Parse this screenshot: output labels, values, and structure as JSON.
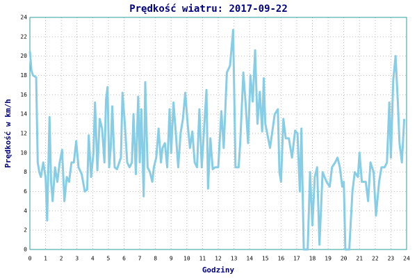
{
  "chart_data": {
    "type": "line",
    "title": "Prędkość wiatru: 2017-09-22",
    "x_label": "Godziny",
    "y_label": "Prędkość w km/h",
    "x": [
      0,
      0.1,
      0.2,
      0.4,
      0.5,
      0.6,
      0.7,
      0.85,
      1.0,
      1.1,
      1.25,
      1.35,
      1.45,
      1.6,
      1.75,
      1.9,
      2.05,
      2.2,
      2.35,
      2.5,
      2.65,
      2.8,
      2.95,
      3.1,
      3.3,
      3.5,
      3.65,
      3.75,
      3.9,
      4.05,
      4.15,
      4.3,
      4.45,
      4.6,
      4.75,
      4.85,
      4.95,
      5.05,
      5.15,
      5.25,
      5.4,
      5.55,
      5.8,
      5.9,
      6.05,
      6.2,
      6.35,
      6.5,
      6.6,
      6.75,
      6.9,
      7.0,
      7.1,
      7.25,
      7.35,
      7.5,
      7.65,
      7.8,
      7.9,
      8.05,
      8.2,
      8.35,
      8.45,
      8.6,
      8.75,
      8.9,
      9.0,
      9.15,
      9.3,
      9.45,
      9.6,
      9.75,
      9.9,
      10.05,
      10.2,
      10.35,
      10.5,
      10.65,
      10.8,
      10.95,
      11.1,
      11.25,
      11.35,
      11.5,
      11.65,
      11.8,
      12.0,
      12.2,
      12.35,
      12.55,
      12.75,
      12.95,
      13.1,
      13.3,
      13.4,
      13.6,
      13.75,
      13.9,
      14.05,
      14.2,
      14.35,
      14.5,
      14.65,
      14.8,
      14.9,
      15.0,
      15.3,
      15.6,
      15.8,
      15.9,
      16.0,
      16.15,
      16.3,
      16.5,
      16.7,
      16.9,
      17.05,
      17.2,
      17.3,
      17.45,
      17.7,
      17.85,
      18.0,
      18.15,
      18.3,
      18.45,
      18.65,
      18.9,
      19.1,
      19.25,
      19.45,
      19.6,
      19.75,
      19.9,
      20.0,
      20.1,
      20.35,
      20.55,
      20.7,
      20.9,
      21.0,
      21.15,
      21.4,
      21.55,
      21.7,
      21.9,
      22.05,
      22.25,
      22.4,
      22.6,
      22.75,
      22.9,
      23.0,
      23.15,
      23.3,
      23.45,
      23.55,
      23.7,
      23.85
    ],
    "series": [
      {
        "name": "Prędkość",
        "color": "#87cde6",
        "values": [
          20.5,
          18.5,
          18,
          17.8,
          9,
          8,
          7.5,
          9,
          7.5,
          3,
          13.7,
          7,
          5,
          8.5,
          7,
          9,
          10.3,
          5,
          7.5,
          7,
          9,
          9,
          11.2,
          8.5,
          7.8,
          6,
          6.2,
          11.8,
          7.5,
          10,
          15.2,
          8.2,
          13.5,
          12.5,
          9,
          15.5,
          16.8,
          8.5,
          10.5,
          14.8,
          8.5,
          8.3,
          9.5,
          16.2,
          13,
          9,
          8.5,
          9,
          14,
          7.8,
          15.8,
          9,
          14.5,
          5.5,
          17.3,
          8.5,
          8,
          7,
          8.5,
          9.5,
          12.5,
          9,
          10.5,
          11,
          8.5,
          14.5,
          10,
          15.2,
          12,
          8.5,
          12,
          13.5,
          16.2,
          13,
          10.5,
          12.2,
          9,
          8.5,
          14.5,
          8.5,
          12.5,
          16.5,
          6.3,
          11.5,
          8.3,
          8.5,
          8.5,
          14.3,
          10.5,
          18.3,
          19,
          22.7,
          8.5,
          8.5,
          11,
          18.3,
          15,
          11,
          18,
          15.3,
          20.6,
          13,
          16.3,
          12.2,
          17.7,
          13,
          10.5,
          14,
          14.5,
          8,
          7,
          13.5,
          11.5,
          11.5,
          9.5,
          12.3,
          12,
          6,
          12.5,
          0,
          0,
          8,
          2.5,
          7.5,
          8.5,
          0.5,
          8,
          7,
          6.5,
          8.5,
          9,
          9.5,
          8.5,
          6.5,
          7,
          0,
          0,
          6,
          8,
          7.5,
          10,
          7,
          7,
          5,
          9,
          8,
          3.5,
          7,
          8.5,
          8.5,
          9,
          15.2,
          9.5,
          17.5,
          20,
          15,
          11,
          9,
          13.5
        ]
      }
    ],
    "xlim": [
      0,
      24
    ],
    "xticks": [
      0,
      1,
      2,
      3,
      4,
      5,
      6,
      7,
      8,
      9,
      10,
      11,
      12,
      13,
      14,
      15,
      16,
      17,
      18,
      19,
      20,
      21,
      22,
      23,
      24
    ],
    "ylim": [
      0,
      24
    ],
    "yticks": [
      0,
      2,
      4,
      6,
      8,
      10,
      12,
      14,
      16,
      18,
      20,
      22,
      24
    ],
    "grid": true
  }
}
